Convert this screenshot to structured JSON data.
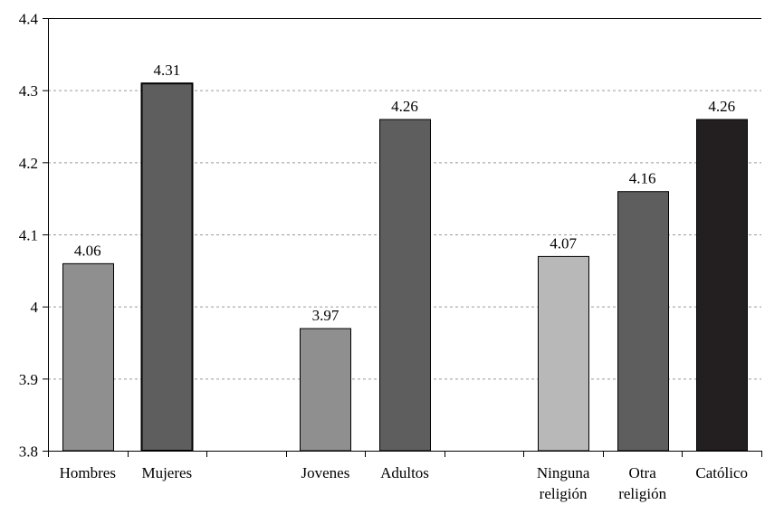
{
  "chart_data": {
    "type": "bar",
    "title": "",
    "xlabel": "",
    "ylabel": "",
    "ylim": [
      3.8,
      4.4
    ],
    "yticks": [
      3.8,
      3.9,
      4,
      4.1,
      4.2,
      4.3,
      4.4
    ],
    "ytick_labels": [
      "3.8",
      "3.9",
      "4",
      "4.1",
      "4.2",
      "4.3",
      "4.4"
    ],
    "grid": true,
    "slots": 9,
    "bars": [
      {
        "slot": 0,
        "category": [
          "Hombres"
        ],
        "value": 4.06,
        "label": "4.06",
        "color": "#8f8f8f",
        "stroke": "#000000",
        "strokeWidth": 1
      },
      {
        "slot": 1,
        "category": [
          "Mujeres"
        ],
        "value": 4.31,
        "label": "4.31",
        "color": "#5e5e5e",
        "stroke": "#000000",
        "strokeWidth": 2
      },
      {
        "slot": 3,
        "category": [
          "Jovenes"
        ],
        "value": 3.97,
        "label": "3.97",
        "color": "#8f8f8f",
        "stroke": "#000000",
        "strokeWidth": 1
      },
      {
        "slot": 4,
        "category": [
          "Adultos"
        ],
        "value": 4.26,
        "label": "4.26",
        "color": "#5e5e5e",
        "stroke": "#000000",
        "strokeWidth": 1
      },
      {
        "slot": 6,
        "category": [
          "Ninguna",
          "religión"
        ],
        "value": 4.07,
        "label": "4.07",
        "color": "#b8b8b8",
        "stroke": "#000000",
        "strokeWidth": 1
      },
      {
        "slot": 7,
        "category": [
          "Otra",
          "religión"
        ],
        "value": 4.16,
        "label": "4.16",
        "color": "#5e5e5e",
        "stroke": "#000000",
        "strokeWidth": 1
      },
      {
        "slot": 8,
        "category": [
          "Católico"
        ],
        "value": 4.26,
        "label": "4.26",
        "color": "#231f20",
        "stroke": "#000000",
        "strokeWidth": 1
      }
    ]
  }
}
